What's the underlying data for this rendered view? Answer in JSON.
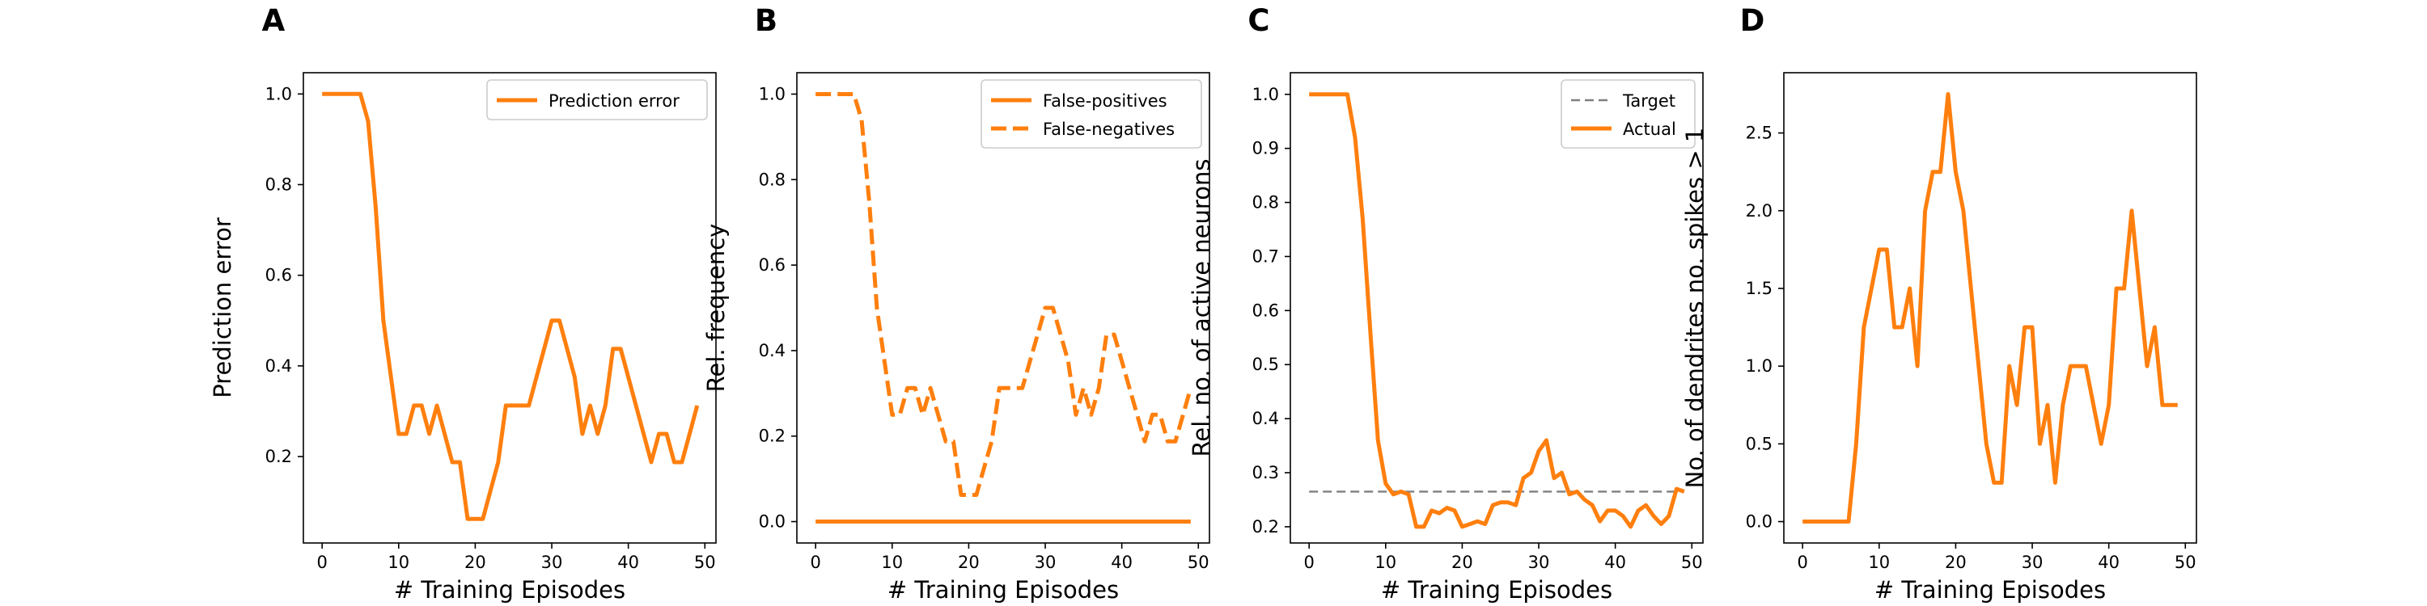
{
  "figure": {
    "panels": [
      "A",
      "B",
      "C",
      "D"
    ],
    "colors": {
      "orange": "#ff7f0e",
      "target_gray": "#7f7f7f",
      "axes": "#000000",
      "legend_border": "#cccccc"
    }
  },
  "chart_data": [
    {
      "type": "line",
      "panel": "A",
      "xlabel": "# Training Episodes",
      "ylabel": "Prediction error",
      "xlim": [
        -2.45,
        51.45
      ],
      "ylim": [
        0.0093,
        1.0469
      ],
      "xticks": [
        0,
        10,
        20,
        30,
        40,
        50
      ],
      "yticks": [
        0.2,
        0.4,
        0.6,
        0.8,
        1.0
      ],
      "xtick_labels": [
        "0",
        "10",
        "20",
        "30",
        "40",
        "50"
      ],
      "ytick_labels": [
        "0.2",
        "0.4",
        "0.6",
        "0.8",
        "1.0"
      ],
      "legend": {
        "position": "upper right",
        "entries": [
          "Prediction error"
        ]
      },
      "series": [
        {
          "name": "Prediction error",
          "style": "solid",
          "color": "#ff7f0e",
          "x": [
            0,
            1,
            2,
            3,
            4,
            5,
            6,
            7,
            8,
            9,
            10,
            11,
            12,
            13,
            14,
            15,
            16,
            17,
            18,
            19,
            20,
            21,
            22,
            23,
            24,
            25,
            26,
            27,
            28,
            29,
            30,
            31,
            32,
            33,
            34,
            35,
            36,
            37,
            38,
            39,
            40,
            41,
            42,
            43,
            44,
            45,
            46,
            47,
            48,
            49
          ],
          "y": [
            1.0,
            1.0,
            1.0,
            1.0,
            1.0,
            1.0,
            0.94,
            0.75,
            0.5,
            0.375,
            0.25,
            0.25,
            0.3125,
            0.3125,
            0.25,
            0.3125,
            0.25,
            0.1875,
            0.1875,
            0.0625,
            0.0625,
            0.0625,
            0.125,
            0.1875,
            0.3125,
            0.3125,
            0.3125,
            0.3125,
            0.375,
            0.4375,
            0.5,
            0.5,
            0.4375,
            0.375,
            0.25,
            0.3125,
            0.25,
            0.3125,
            0.4375,
            0.4375,
            0.375,
            0.3125,
            0.25,
            0.1875,
            0.25,
            0.25,
            0.1875,
            0.1875,
            0.25,
            0.3125
          ]
        }
      ]
    },
    {
      "type": "line",
      "panel": "B",
      "xlabel": "# Training Episodes",
      "ylabel": "Rel. frequency",
      "xlim": [
        -2.45,
        51.45
      ],
      "ylim": [
        -0.05,
        1.05
      ],
      "xticks": [
        0,
        10,
        20,
        30,
        40,
        50
      ],
      "yticks": [
        0.0,
        0.2,
        0.4,
        0.6,
        0.8,
        1.0
      ],
      "xtick_labels": [
        "0",
        "10",
        "20",
        "30",
        "40",
        "50"
      ],
      "ytick_labels": [
        "0.0",
        "0.2",
        "0.4",
        "0.6",
        "0.8",
        "1.0"
      ],
      "legend": {
        "position": "upper right",
        "entries": [
          "False-positives",
          "False-negatives"
        ]
      },
      "series": [
        {
          "name": "False-positives",
          "style": "solid",
          "color": "#ff7f0e",
          "x": [
            0,
            49
          ],
          "y": [
            0.0,
            0.0
          ]
        },
        {
          "name": "False-negatives",
          "style": "dashed",
          "color": "#ff7f0e",
          "x": [
            0,
            1,
            2,
            3,
            4,
            5,
            6,
            7,
            8,
            9,
            10,
            11,
            12,
            13,
            14,
            15,
            16,
            17,
            18,
            19,
            20,
            21,
            22,
            23,
            24,
            25,
            26,
            27,
            28,
            29,
            30,
            31,
            32,
            33,
            34,
            35,
            36,
            37,
            38,
            39,
            40,
            41,
            42,
            43,
            44,
            45,
            46,
            47,
            48,
            49
          ],
          "y": [
            1.0,
            1.0,
            1.0,
            1.0,
            1.0,
            1.0,
            0.94,
            0.75,
            0.5,
            0.375,
            0.25,
            0.25,
            0.3125,
            0.3125,
            0.25,
            0.3125,
            0.25,
            0.1875,
            0.1875,
            0.0625,
            0.0625,
            0.0625,
            0.125,
            0.1875,
            0.3125,
            0.3125,
            0.3125,
            0.3125,
            0.375,
            0.4375,
            0.5,
            0.5,
            0.4375,
            0.375,
            0.25,
            0.3125,
            0.25,
            0.3125,
            0.4375,
            0.4375,
            0.375,
            0.3125,
            0.25,
            0.1875,
            0.25,
            0.25,
            0.1875,
            0.1875,
            0.25,
            0.3125
          ]
        }
      ]
    },
    {
      "type": "line",
      "panel": "C",
      "xlabel": "# Training Episodes",
      "ylabel": "Rel. no. of active neurons",
      "xlim": [
        -2.45,
        51.45
      ],
      "ylim": [
        0.17,
        1.04
      ],
      "xticks": [
        0,
        10,
        20,
        30,
        40,
        50
      ],
      "yticks": [
        0.2,
        0.3,
        0.4,
        0.5,
        0.6,
        0.7,
        0.8,
        0.9,
        1.0
      ],
      "xtick_labels": [
        "0",
        "10",
        "20",
        "30",
        "40",
        "50"
      ],
      "ytick_labels": [
        "0.2",
        "0.3",
        "0.4",
        "0.5",
        "0.6",
        "0.7",
        "0.8",
        "0.9",
        "1.0"
      ],
      "legend": {
        "position": "upper right",
        "entries": [
          "Target",
          "Actual"
        ]
      },
      "series": [
        {
          "name": "Target",
          "style": "dashed",
          "color": "#7f7f7f",
          "x": [
            0,
            49
          ],
          "y": [
            0.265,
            0.265
          ]
        },
        {
          "name": "Actual",
          "style": "solid",
          "color": "#ff7f0e",
          "x": [
            0,
            1,
            2,
            3,
            4,
            5,
            6,
            7,
            8,
            9,
            10,
            11,
            12,
            13,
            14,
            15,
            16,
            17,
            18,
            19,
            20,
            21,
            22,
            23,
            24,
            25,
            26,
            27,
            28,
            29,
            30,
            31,
            32,
            33,
            34,
            35,
            36,
            37,
            38,
            39,
            40,
            41,
            42,
            43,
            44,
            45,
            46,
            47,
            48,
            49
          ],
          "y": [
            1.0,
            1.0,
            1.0,
            1.0,
            1.0,
            1.0,
            0.92,
            0.77,
            0.56,
            0.36,
            0.28,
            0.26,
            0.265,
            0.26,
            0.2,
            0.2,
            0.23,
            0.225,
            0.235,
            0.23,
            0.2,
            0.205,
            0.21,
            0.205,
            0.24,
            0.245,
            0.245,
            0.24,
            0.29,
            0.3,
            0.34,
            0.36,
            0.29,
            0.3,
            0.26,
            0.265,
            0.25,
            0.24,
            0.21,
            0.23,
            0.23,
            0.22,
            0.2,
            0.23,
            0.24,
            0.22,
            0.205,
            0.22,
            0.27,
            0.265
          ]
        }
      ]
    },
    {
      "type": "line",
      "panel": "D",
      "xlabel": "# Training Episodes",
      "ylabel": "No. of dendrites no. spikes > 1",
      "xlim": [
        -2.45,
        51.45
      ],
      "ylim": [
        -0.1375,
        2.8875
      ],
      "xticks": [
        0,
        10,
        20,
        30,
        40,
        50
      ],
      "yticks": [
        0.0,
        0.5,
        1.0,
        1.5,
        2.0,
        2.5
      ],
      "xtick_labels": [
        "0",
        "10",
        "20",
        "30",
        "40",
        "50"
      ],
      "ytick_labels": [
        "0.0",
        "0.5",
        "1.0",
        "1.5",
        "2.0",
        "2.5"
      ],
      "series": [
        {
          "style": "solid",
          "color": "#ff7f0e",
          "x": [
            0,
            1,
            2,
            3,
            4,
            5,
            6,
            7,
            8,
            9,
            10,
            11,
            12,
            13,
            14,
            15,
            16,
            17,
            18,
            19,
            20,
            21,
            22,
            23,
            24,
            25,
            26,
            27,
            28,
            29,
            30,
            31,
            32,
            33,
            34,
            35,
            36,
            37,
            38,
            39,
            40,
            41,
            42,
            43,
            44,
            45,
            46,
            47,
            48,
            49
          ],
          "y": [
            0.0,
            0.0,
            0.0,
            0.0,
            0.0,
            0.0,
            0.0,
            0.5,
            1.25,
            1.5,
            1.75,
            1.75,
            1.25,
            1.25,
            1.5,
            1.0,
            2.0,
            2.25,
            2.25,
            2.75,
            2.25,
            2.0,
            1.5,
            1.0,
            0.5,
            0.25,
            0.25,
            1.0,
            0.75,
            1.25,
            1.25,
            0.5,
            0.75,
            0.25,
            0.75,
            1.0,
            1.0,
            1.0,
            0.75,
            0.5,
            0.75,
            1.5,
            1.5,
            2.0,
            1.5,
            1.0,
            1.25,
            0.75,
            0.75,
            0.75
          ]
        }
      ]
    }
  ]
}
